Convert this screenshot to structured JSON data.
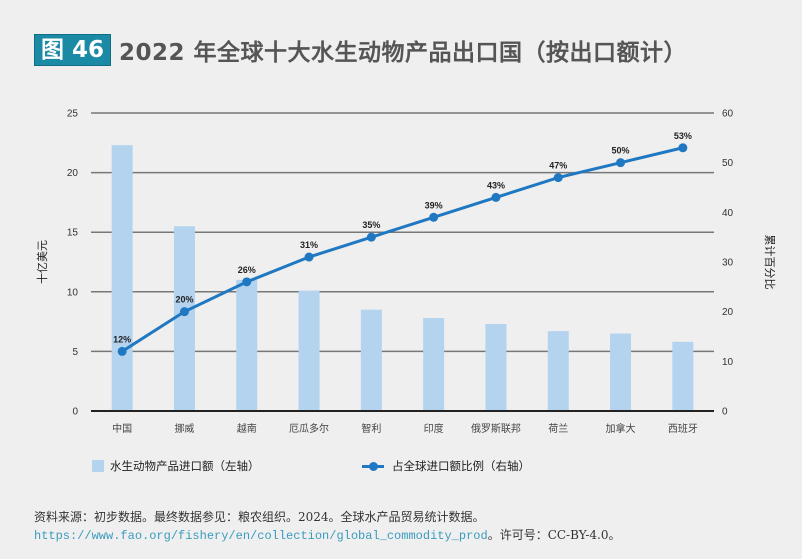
{
  "header": {
    "figure_label": "图 46",
    "title": "2022 年全球十大水生动物产品出口国（按出口额计）"
  },
  "chart_data": {
    "type": "bar",
    "title": "2022 年全球十大水生动物产品出口国（按出口额计）",
    "categories": [
      "中国",
      "挪威",
      "越南",
      "厄瓜多尔",
      "智利",
      "印度",
      "俄罗斯联邦",
      "荷兰",
      "加拿大",
      "西班牙"
    ],
    "series": [
      {
        "name": "水生动物产品进口额（左轴）",
        "type": "bar",
        "axis": "left",
        "color": "#b3d3ef",
        "values": [
          22.3,
          15.5,
          11.0,
          10.1,
          8.5,
          7.8,
          7.3,
          6.7,
          6.5,
          5.8
        ]
      },
      {
        "name": "占全球进口额比例（右轴）",
        "type": "line",
        "axis": "right",
        "color": "#1f78c1",
        "values": [
          12,
          20,
          26,
          31,
          35,
          39,
          43,
          47,
          50,
          53
        ],
        "labels": [
          "12%",
          "20%",
          "26%",
          "31%",
          "35%",
          "39%",
          "43%",
          "47%",
          "50%",
          "53%"
        ]
      }
    ],
    "ylabel": "十亿美元",
    "ylim": [
      0,
      25
    ],
    "yticks": [
      "0",
      "5",
      "10",
      "15",
      "20",
      "25"
    ],
    "y2label": "累计百分比",
    "y2lim": [
      0,
      60
    ],
    "y2ticks": [
      "0",
      "10",
      "20",
      "30",
      "40",
      "50",
      "60"
    ],
    "grid": true,
    "legend_position": "bottom"
  },
  "legend": {
    "bar_label": "水生动物产品进口额（左轴）",
    "line_label": "占全球进口额比例（右轴）"
  },
  "source": {
    "text": "资料来源：初步数据。最终数据参见：粮农组织。2024。全球水产品贸易统计数据。",
    "link": "https://www.fao.org/fishery/en/collection/global_commodity_prod",
    "suffix": "。许可号：CC-BY-4.0。"
  }
}
